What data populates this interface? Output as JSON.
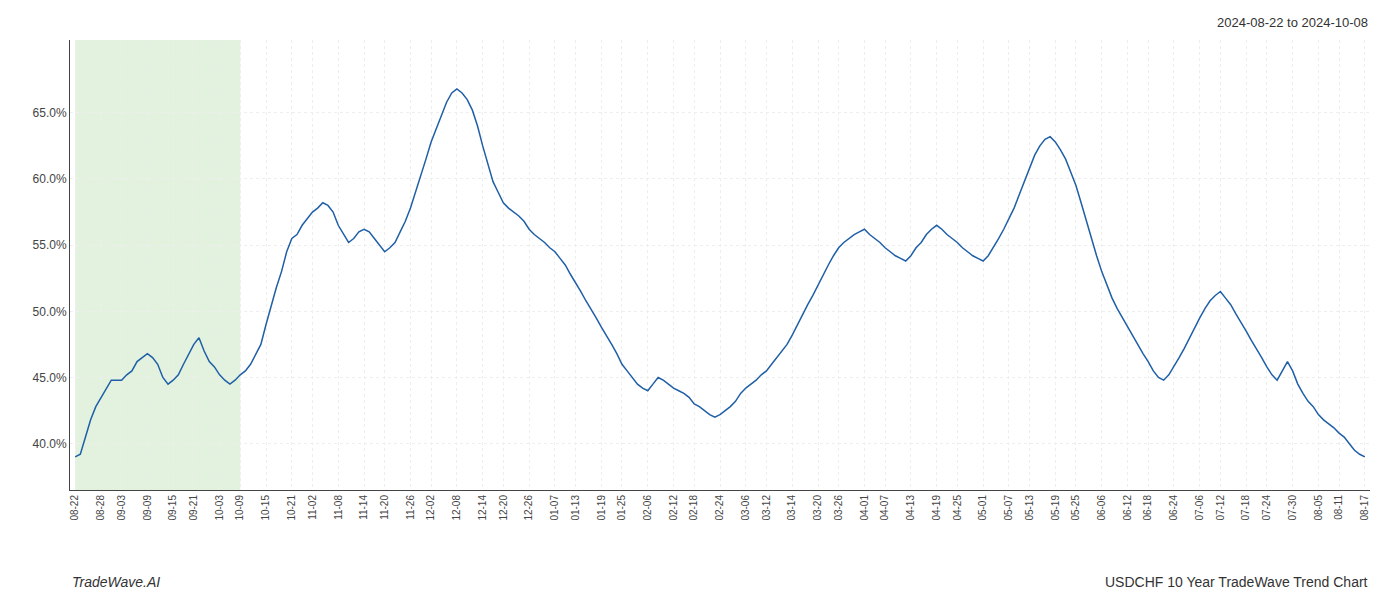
{
  "chart_data": {
    "type": "line",
    "title": "USDCHF 10 Year TradeWave Trend Chart",
    "subtitle": "2024-08-22 to 2024-10-08",
    "annotations": [
      "TradeWave.AI"
    ],
    "color": "#1f5fa6",
    "grid": true,
    "ylim": [
      0.365,
      0.705
    ],
    "yticks": [
      {
        "value": 0.4,
        "label": "40.0%"
      },
      {
        "value": 0.45,
        "label": "45.0%"
      },
      {
        "value": 0.5,
        "label": "50.0%"
      },
      {
        "value": 0.55,
        "label": "55.0%"
      },
      {
        "value": 0.6,
        "label": "60.0%"
      },
      {
        "value": 0.65,
        "label": "65.0%"
      }
    ],
    "shaded_span": {
      "start": "08-22",
      "end": "10-09",
      "color": "#d6ecd2"
    },
    "categories": [
      "08-22",
      null,
      null,
      null,
      null,
      "08-28",
      null,
      null,
      null,
      "09-03",
      null,
      null,
      null,
      null,
      "09-09",
      null,
      null,
      null,
      null,
      "09-15",
      null,
      null,
      null,
      "09-21",
      null,
      null,
      null,
      null,
      "10-03",
      null,
      null,
      null,
      "10-09",
      null,
      null,
      null,
      null,
      "10-15",
      null,
      null,
      null,
      null,
      "10-21",
      null,
      null,
      null,
      "11-02",
      null,
      null,
      null,
      null,
      "11-08",
      null,
      null,
      null,
      null,
      "11-14",
      null,
      null,
      null,
      "11-20",
      null,
      null,
      null,
      null,
      "11-26",
      null,
      null,
      null,
      "12-02",
      null,
      null,
      null,
      null,
      "12-08",
      null,
      null,
      null,
      null,
      "12-14",
      null,
      null,
      null,
      "12-20",
      null,
      null,
      null,
      null,
      "12-26",
      null,
      null,
      null,
      null,
      "01-07",
      null,
      null,
      null,
      "01-13",
      null,
      null,
      null,
      null,
      "01-19",
      null,
      null,
      null,
      "01-25",
      null,
      null,
      null,
      null,
      "02-06",
      null,
      null,
      null,
      null,
      "02-12",
      null,
      null,
      null,
      "02-18",
      null,
      null,
      null,
      null,
      "02-24",
      null,
      null,
      null,
      null,
      "03-06",
      null,
      null,
      null,
      "03-12",
      null,
      null,
      null,
      null,
      "03-14",
      null,
      null,
      null,
      null,
      "03-20",
      null,
      null,
      null,
      "03-26",
      null,
      null,
      null,
      null,
      "04-01",
      null,
      null,
      null,
      "04-07",
      null,
      null,
      null,
      null,
      "04-13",
      null,
      null,
      null,
      null,
      "04-19",
      null,
      null,
      null,
      "04-25",
      null,
      null,
      null,
      null,
      "05-01",
      null,
      null,
      null,
      null,
      "05-07",
      null,
      null,
      null,
      "05-13",
      null,
      null,
      null,
      null,
      "05-19",
      null,
      null,
      null,
      "05-25",
      null,
      null,
      null,
      null,
      "06-06",
      null,
      null,
      null,
      null,
      "06-12",
      null,
      null,
      null,
      "06-18",
      null,
      null,
      null,
      null,
      "06-24",
      null,
      null,
      null,
      null,
      "07-06",
      null,
      null,
      null,
      "07-12",
      null,
      null,
      null,
      null,
      "07-18",
      null,
      null,
      null,
      "07-24",
      null,
      null,
      null,
      null,
      "07-30",
      null,
      null,
      null,
      null,
      "08-05",
      null,
      null,
      null,
      "08-11",
      null,
      null,
      null,
      null,
      "08-17"
    ],
    "values": [
      0.39,
      0.392,
      0.405,
      0.418,
      0.428,
      0.435,
      0.442,
      0.448,
      0.448,
      0.448,
      0.452,
      0.455,
      0.462,
      0.465,
      0.468,
      0.465,
      0.46,
      0.45,
      0.445,
      0.448,
      0.452,
      0.46,
      0.468,
      0.475,
      0.48,
      0.47,
      0.462,
      0.458,
      0.452,
      0.448,
      0.445,
      0.448,
      0.452,
      0.455,
      0.46,
      0.468,
      0.475,
      0.49,
      0.505,
      0.518,
      0.53,
      0.545,
      0.555,
      0.558,
      0.565,
      0.57,
      0.575,
      0.578,
      0.582,
      0.58,
      0.575,
      0.565,
      0.558,
      0.552,
      0.555,
      0.56,
      0.562,
      0.56,
      0.555,
      0.55,
      0.545,
      0.548,
      0.552,
      0.56,
      0.568,
      0.578,
      0.59,
      0.602,
      0.615,
      0.628,
      0.638,
      0.648,
      0.658,
      0.665,
      0.668,
      0.665,
      0.66,
      0.652,
      0.64,
      0.625,
      0.612,
      0.598,
      0.59,
      0.582,
      0.578,
      0.575,
      0.572,
      0.568,
      0.562,
      0.558,
      0.555,
      0.552,
      0.548,
      0.545,
      0.54,
      0.535,
      0.528,
      0.522,
      0.515,
      0.508,
      0.502,
      0.495,
      0.488,
      0.482,
      0.475,
      0.468,
      0.46,
      0.455,
      0.45,
      0.445,
      0.442,
      0.44,
      0.445,
      0.45,
      0.448,
      0.445,
      0.442,
      0.44,
      0.438,
      0.435,
      0.43,
      0.428,
      0.425,
      0.422,
      0.42,
      0.422,
      0.425,
      0.428,
      0.432,
      0.438,
      0.442,
      0.445,
      0.448,
      0.452,
      0.455,
      0.46,
      0.465,
      0.47,
      0.475,
      0.482,
      0.49,
      0.498,
      0.505,
      0.512,
      0.52,
      0.528,
      0.535,
      0.542,
      0.548,
      0.552,
      0.555,
      0.558,
      0.56,
      0.562,
      0.558,
      0.555,
      0.552,
      0.548,
      0.545,
      0.542,
      0.54,
      0.538,
      0.542,
      0.548,
      0.552,
      0.558,
      0.562,
      0.565,
      0.562,
      0.558,
      0.555,
      0.552,
      0.548,
      0.545,
      0.542,
      0.54,
      0.538,
      0.542,
      0.548,
      0.555,
      0.562,
      0.57,
      0.578,
      0.588,
      0.598,
      0.608,
      0.618,
      0.625,
      0.63,
      0.632,
      0.628,
      0.622,
      0.615,
      0.605,
      0.595,
      0.582,
      0.568,
      0.555,
      0.542,
      0.53,
      0.52,
      0.51,
      0.502,
      0.495,
      0.488,
      0.482,
      0.475,
      0.468,
      0.462,
      0.455,
      0.45,
      0.448,
      0.452,
      0.458,
      0.465,
      0.472,
      0.48,
      0.488,
      0.495,
      0.502,
      0.508,
      0.512,
      0.515,
      0.51,
      0.505,
      0.498,
      0.492,
      0.485,
      0.478,
      0.472,
      0.465,
      0.458,
      0.452,
      0.448,
      0.455,
      0.462,
      0.455,
      0.445,
      0.438,
      0.432,
      0.428,
      0.422,
      0.418,
      0.415,
      0.412,
      0.408,
      0.405,
      0.4,
      0.395,
      0.392,
      0.39
    ]
  }
}
